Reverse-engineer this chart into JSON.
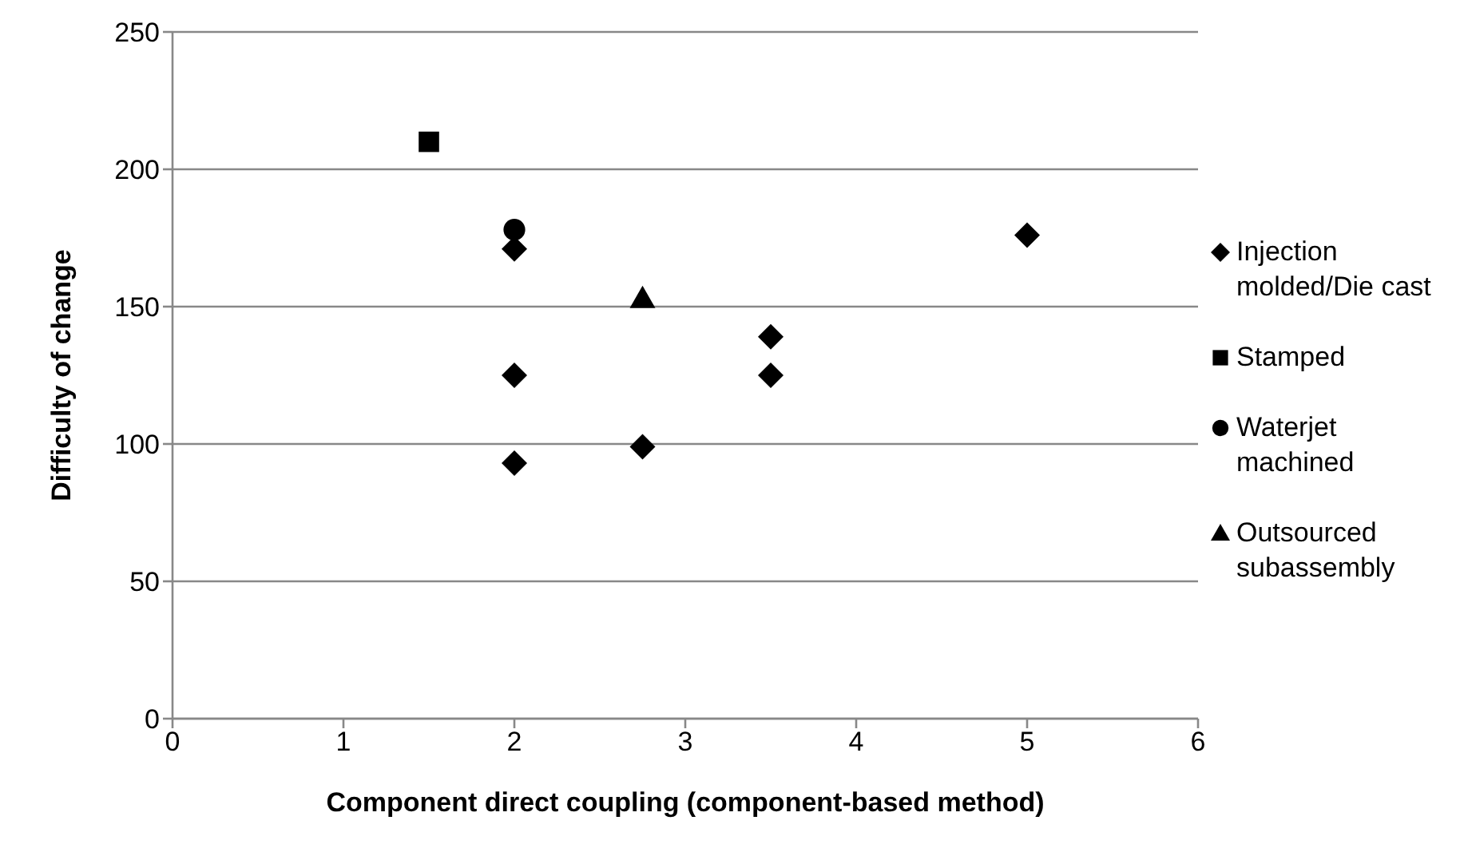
{
  "chart_data": {
    "type": "scatter",
    "xlabel": "Component direct coupling (component-based method)",
    "ylabel": "Difficulty of change",
    "xlim": [
      0,
      6
    ],
    "xticks": [
      0,
      1,
      2,
      3,
      4,
      5,
      6
    ],
    "ylim": [
      0,
      250
    ],
    "yticks": [
      0,
      50,
      100,
      150,
      200,
      250
    ],
    "grid": "y",
    "legend": "right",
    "series": [
      {
        "name": "Injection molded/Die cast",
        "color": "#000000",
        "marker": "diamond",
        "x": [
          2,
          2,
          2,
          2.75,
          3.5,
          3.5,
          5
        ],
        "values": [
          171,
          125,
          93,
          99,
          139,
          125,
          176
        ]
      },
      {
        "name": "Stamped",
        "color": "#000000",
        "marker": "square",
        "x": [
          1.5
        ],
        "values": [
          210
        ]
      },
      {
        "name": "Waterjet machined",
        "color": "#000000",
        "marker": "circle",
        "x": [
          2
        ],
        "values": [
          178
        ]
      },
      {
        "name": "Outsourced subassembly",
        "color": "#000000",
        "marker": "triangle",
        "x": [
          2.75
        ],
        "values": [
          153
        ]
      }
    ]
  }
}
